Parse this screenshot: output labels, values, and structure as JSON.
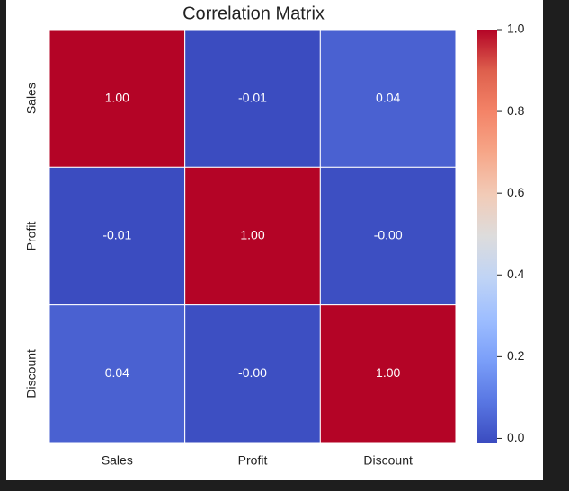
{
  "chart_data": {
    "type": "heatmap",
    "title": "Correlation Matrix",
    "categories": [
      "Sales",
      "Profit",
      "Discount"
    ],
    "values": [
      [
        1,
        -0.01,
        0.04
      ],
      [
        -0.01,
        1,
        -0.003
      ],
      [
        0.04,
        -0.003,
        1
      ]
    ],
    "value_labels": [
      [
        "1.00",
        "-0.01",
        "0.04"
      ],
      [
        "-0.01",
        "1.00",
        "-0.00"
      ],
      [
        "0.04",
        "-0.00",
        "1.00"
      ]
    ],
    "colormap": "coolwarm",
    "zlim": [
      -0.01,
      1
    ],
    "zticks": [
      {
        "value": 0,
        "label": "0.0"
      },
      {
        "value": 0.2,
        "label": "0.2"
      },
      {
        "value": 0.4,
        "label": "0.4"
      },
      {
        "value": 0.6,
        "label": "0.6"
      },
      {
        "value": 0.8,
        "label": "0.8"
      },
      {
        "value": 1,
        "label": "1.0"
      }
    ]
  }
}
